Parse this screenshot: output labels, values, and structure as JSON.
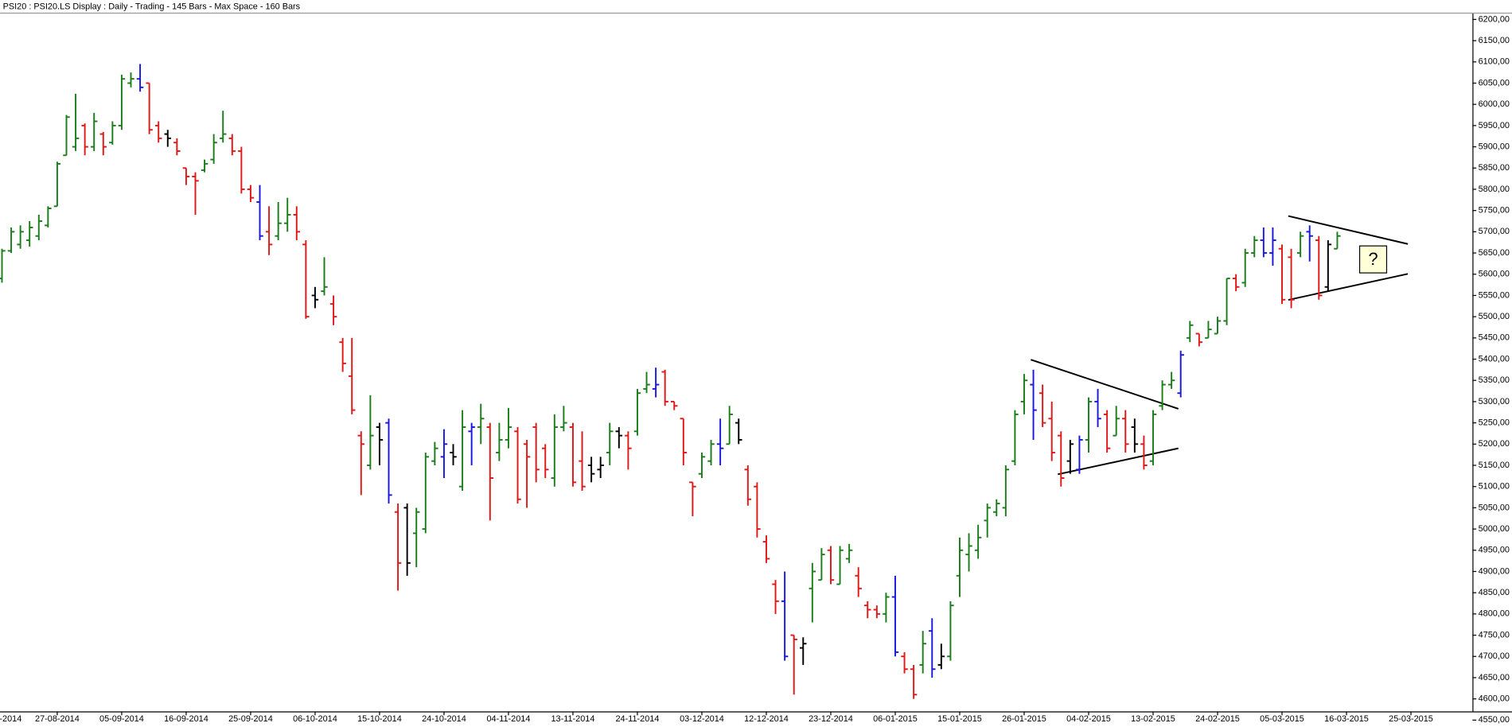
{
  "chart_data": {
    "type": "ohlc",
    "title": "PSI20 : PSI20.LS Display :  Daily  - Trading - 145 Bars  -  Max Space - 160 Bars",
    "annotation": "?",
    "categories": [
      "-2014",
      null,
      null,
      null,
      null,
      null,
      null,
      "27-08-2014",
      null,
      null,
      null,
      null,
      null,
      null,
      "05-09-2014",
      null,
      null,
      null,
      null,
      null,
      null,
      "16-09-2014",
      null,
      null,
      null,
      null,
      null,
      null,
      "25-09-2014",
      null,
      null,
      null,
      null,
      null,
      null,
      "06-10-2014",
      null,
      null,
      null,
      null,
      null,
      null,
      "15-10-2014",
      null,
      null,
      null,
      null,
      null,
      null,
      "24-10-2014",
      null,
      null,
      null,
      null,
      null,
      null,
      "04-11-2014",
      null,
      null,
      null,
      null,
      null,
      null,
      "13-11-2014",
      null,
      null,
      null,
      null,
      null,
      null,
      "24-11-2014",
      null,
      null,
      null,
      null,
      null,
      null,
      "03-12-2014",
      null,
      null,
      null,
      null,
      null,
      null,
      "12-12-2014",
      null,
      null,
      null,
      null,
      null,
      null,
      "23-12-2014",
      null,
      null,
      null,
      null,
      null,
      null,
      "06-01-2015",
      null,
      null,
      null,
      null,
      null,
      null,
      "15-01-2015",
      null,
      null,
      null,
      null,
      null,
      null,
      "26-01-2015",
      null,
      null,
      null,
      null,
      null,
      null,
      "04-02-2015",
      null,
      null,
      null,
      null,
      null,
      null,
      "13-02-2015",
      null,
      null,
      null,
      null,
      null,
      null,
      "24-02-2015",
      null,
      null,
      null,
      null,
      null,
      null,
      "05-03-2015",
      null,
      null,
      null,
      null,
      null,
      null,
      "16-03-2015",
      null,
      null,
      null,
      null,
      null,
      null,
      "25-03-2015",
      null,
      null,
      null,
      null,
      null,
      null
    ],
    "open": [
      null,
      5590,
      5655,
      5670,
      5680,
      5690,
      5715,
      5760,
      5880,
      5900,
      5950,
      5900,
      5930,
      5910,
      5950,
      6050,
      6060,
      6050,
      5950,
      5930,
      5910,
      5850,
      5830,
      5845,
      5870,
      5920,
      5920,
      5890,
      5800,
      5770,
      5700,
      5690,
      5720,
      5740,
      5670,
      5550,
      5560,
      5530,
      5440,
      5360,
      5220,
      5150,
      5240,
      5250,
      5040,
      5050,
      4990,
      5000,
      5160,
      5170,
      5180,
      5100,
      5230,
      5240,
      5240,
      5180,
      5210,
      5230,
      5200,
      5240,
      5190,
      5120,
      5240,
      5240,
      5160,
      5150,
      5140,
      5180,
      5230,
      5220,
      5230,
      5330,
      5330,
      5370,
      5300,
      5260,
      5110,
      5130,
      5160,
      5200,
      5200,
      5250,
      5140,
      5100,
      4970,
      4870,
      4830,
      4750,
      4720,
      4860,
      4880,
      4950,
      4870,
      4930,
      4890,
      4820,
      4810,
      4800,
      4840,
      4700,
      4670,
      4680,
      4760,
      4680,
      4700,
      4890,
      4940,
      4950,
      5020,
      5040,
      5050,
      5160,
      5300,
      5340,
      5320,
      5260,
      5220,
      5160,
      5140,
      5210,
      5300,
      5270,
      5220,
      5260,
      5240,
      5200,
      5160,
      5290,
      5340,
      5320,
      5450,
      5460,
      5450,
      5460,
      5490,
      5590,
      5580,
      5650,
      5680,
      5650,
      5660,
      5640,
      5650,
      5700,
      5680,
      5570,
      5660,
      null,
      null,
      null,
      null,
      null,
      null,
      null,
      null,
      null,
      null,
      null,
      null,
      null,
      null
    ],
    "high": [
      null,
      5660,
      5710,
      5715,
      5725,
      5740,
      5760,
      5865,
      5975,
      6025,
      5955,
      5980,
      5935,
      5960,
      6070,
      6075,
      6095,
      6050,
      5960,
      5940,
      5920,
      5850,
      5840,
      5870,
      5930,
      5985,
      5930,
      5900,
      5810,
      5810,
      5760,
      5770,
      5780,
      5760,
      5680,
      5570,
      5640,
      5550,
      5450,
      5450,
      5230,
      5315,
      5250,
      5260,
      5060,
      5060,
      5050,
      5180,
      5205,
      5235,
      5200,
      5280,
      5250,
      5295,
      5250,
      5250,
      5285,
      5240,
      5210,
      5250,
      5200,
      5270,
      5290,
      5250,
      5230,
      5170,
      5170,
      5250,
      5240,
      5230,
      5330,
      5370,
      5380,
      5375,
      5300,
      5260,
      5110,
      5180,
      5210,
      5260,
      5290,
      5260,
      5150,
      5110,
      4985,
      4880,
      4900,
      4750,
      4745,
      4920,
      4955,
      4960,
      4960,
      4965,
      4910,
      4830,
      4820,
      4850,
      4890,
      4710,
      4680,
      4760,
      4790,
      4730,
      4830,
      4980,
      4990,
      5010,
      5060,
      5070,
      5150,
      5280,
      5365,
      5375,
      5340,
      5300,
      5230,
      5210,
      5220,
      5310,
      5330,
      5280,
      5290,
      5280,
      5260,
      5220,
      5280,
      5350,
      5370,
      5420,
      5490,
      5460,
      5490,
      5500,
      5590,
      5600,
      5660,
      5690,
      5710,
      5710,
      5670,
      5660,
      5700,
      5715,
      5690,
      5680,
      5700,
      null,
      null,
      null,
      null,
      null,
      null,
      null,
      null,
      null,
      null,
      null,
      null,
      null,
      null
    ],
    "low": [
      null,
      5580,
      5650,
      5660,
      5665,
      5680,
      5710,
      5760,
      5880,
      5890,
      5880,
      5890,
      5880,
      5905,
      5940,
      6040,
      6030,
      5930,
      5910,
      5900,
      5880,
      5810,
      5740,
      5840,
      5860,
      5910,
      5880,
      5790,
      5770,
      5680,
      5645,
      5680,
      5700,
      5680,
      5495,
      5520,
      5550,
      5480,
      5370,
      5270,
      5080,
      5140,
      5150,
      5060,
      4855,
      4890,
      4910,
      4990,
      5150,
      5120,
      5150,
      5090,
      5150,
      5200,
      5020,
      5160,
      5190,
      5060,
      5050,
      5110,
      5120,
      5100,
      5230,
      5100,
      5090,
      5110,
      5120,
      5150,
      5190,
      5140,
      5220,
      5320,
      5310,
      5290,
      5280,
      5150,
      5030,
      5120,
      5150,
      5150,
      5200,
      5200,
      5055,
      4980,
      4920,
      4800,
      4690,
      4610,
      4680,
      4780,
      4880,
      4870,
      4870,
      4920,
      4840,
      4790,
      4790,
      4780,
      4700,
      4660,
      4600,
      4660,
      4650,
      4670,
      4690,
      4840,
      4900,
      4930,
      4980,
      5030,
      5030,
      5150,
      5270,
      5210,
      5240,
      5160,
      5100,
      5130,
      5130,
      5180,
      5240,
      5180,
      5220,
      5180,
      5180,
      5140,
      5150,
      5280,
      5330,
      5310,
      5440,
      5430,
      5450,
      5460,
      5480,
      5560,
      5570,
      5640,
      5640,
      5620,
      5530,
      5520,
      5640,
      5630,
      5540,
      5560,
      5660,
      null,
      null,
      null,
      null,
      null,
      null,
      null,
      null,
      null,
      null,
      null,
      null,
      null,
      null
    ],
    "close": [
      null,
      5655,
      5700,
      5700,
      5710,
      5725,
      5755,
      5860,
      5970,
      5920,
      5900,
      5960,
      5900,
      5950,
      6060,
      6060,
      6040,
      5940,
      5920,
      5920,
      5890,
      5830,
      5820,
      5860,
      5910,
      5930,
      5890,
      5800,
      5780,
      5690,
      5670,
      5720,
      5740,
      5700,
      5500,
      5540,
      5570,
      5500,
      5390,
      5280,
      5200,
      5220,
      5210,
      5080,
      4920,
      4920,
      5040,
      5170,
      5190,
      5200,
      5170,
      5240,
      5240,
      5260,
      5120,
      5210,
      5240,
      5070,
      5170,
      5140,
      5140,
      5240,
      5250,
      5110,
      5100,
      5130,
      5150,
      5230,
      5220,
      5190,
      5320,
      5340,
      5340,
      5300,
      5290,
      5180,
      5100,
      5170,
      5200,
      5190,
      5270,
      5210,
      5070,
      5000,
      4930,
      4830,
      4700,
      4740,
      4730,
      4900,
      4940,
      4880,
      4950,
      4950,
      4860,
      4810,
      4800,
      4840,
      4710,
      4670,
      4610,
      4730,
      4670,
      4700,
      4820,
      4950,
      4960,
      4980,
      5050,
      5060,
      5140,
      5270,
      5350,
      5280,
      5250,
      5180,
      5120,
      5200,
      5210,
      5300,
      5260,
      5190,
      5260,
      5200,
      5200,
      5150,
      5270,
      5340,
      5350,
      5410,
      5480,
      5440,
      5470,
      5490,
      5590,
      5570,
      5650,
      5680,
      5650,
      5680,
      5540,
      5540,
      5690,
      5690,
      5550,
      5670,
      5690,
      null,
      null,
      null,
      null,
      null,
      null,
      null,
      null,
      null,
      null,
      null,
      null,
      null,
      null
    ],
    "colors": [
      null,
      "#1b7d1b",
      "#1b7d1b",
      "#1b7d1b",
      "#1b7d1b",
      "#1b7d1b",
      "#1b7d1b",
      "#1b7d1b",
      "#1b7d1b",
      "#1b7d1b",
      "#e01818",
      "#1b7d1b",
      "#e01818",
      "#1b7d1b",
      "#1b7d1b",
      "#1b7d1b",
      "#1818e0",
      "#e01818",
      "#e01818",
      "#000000",
      "#e01818",
      "#e01818",
      "#e01818",
      "#1b7d1b",
      "#1b7d1b",
      "#1b7d1b",
      "#e01818",
      "#e01818",
      "#e01818",
      "#1818e0",
      "#e01818",
      "#1b7d1b",
      "#1b7d1b",
      "#e01818",
      "#e01818",
      "#000000",
      "#1b7d1b",
      "#e01818",
      "#e01818",
      "#e01818",
      "#e01818",
      "#1b7d1b",
      "#000000",
      "#1818e0",
      "#e01818",
      "#000000",
      "#1b7d1b",
      "#1b7d1b",
      "#1b7d1b",
      "#1818e0",
      "#000000",
      "#1b7d1b",
      "#1818e0",
      "#1b7d1b",
      "#e01818",
      "#1b7d1b",
      "#1b7d1b",
      "#e01818",
      "#e01818",
      "#e01818",
      "#e01818",
      "#1b7d1b",
      "#1b7d1b",
      "#e01818",
      "#e01818",
      "#000000",
      "#000000",
      "#1b7d1b",
      "#000000",
      "#e01818",
      "#1b7d1b",
      "#1b7d1b",
      "#1818e0",
      "#e01818",
      "#e01818",
      "#e01818",
      "#e01818",
      "#1b7d1b",
      "#1b7d1b",
      "#1818e0",
      "#1b7d1b",
      "#000000",
      "#e01818",
      "#e01818",
      "#e01818",
      "#e01818",
      "#1818e0",
      "#e01818",
      "#000000",
      "#1b7d1b",
      "#1b7d1b",
      "#e01818",
      "#1b7d1b",
      "#1b7d1b",
      "#e01818",
      "#e01818",
      "#e01818",
      "#1b7d1b",
      "#1818e0",
      "#e01818",
      "#e01818",
      "#1b7d1b",
      "#1818e0",
      "#000000",
      "#1b7d1b",
      "#1b7d1b",
      "#1b7d1b",
      "#1b7d1b",
      "#1b7d1b",
      "#1b7d1b",
      "#1b7d1b",
      "#1b7d1b",
      "#1b7d1b",
      "#1818e0",
      "#e01818",
      "#e01818",
      "#e01818",
      "#000000",
      "#1818e0",
      "#1b7d1b",
      "#1818e0",
      "#e01818",
      "#1b7d1b",
      "#e01818",
      "#000000",
      "#e01818",
      "#1b7d1b",
      "#1b7d1b",
      "#1b7d1b",
      "#1818e0",
      "#1b7d1b",
      "#e01818",
      "#1b7d1b",
      "#1b7d1b",
      "#1b7d1b",
      "#e01818",
      "#1b7d1b",
      "#1b7d1b",
      "#1818e0",
      "#1818e0",
      "#e01818",
      "#e01818",
      "#1b7d1b",
      "#1818e0",
      "#e01818",
      "#000000",
      "#1b7d1b",
      null,
      null,
      null,
      null,
      null,
      null,
      null,
      null,
      null,
      null,
      null,
      null,
      null,
      null
    ],
    "ylim": [
      4550,
      6200
    ],
    "yticks": [
      {
        "value": 6200,
        "label": "6200,00"
      },
      {
        "value": 6150,
        "label": "6150,00"
      },
      {
        "value": 6100,
        "label": "6100,00"
      },
      {
        "value": 6050,
        "label": "6050,00"
      },
      {
        "value": 6000,
        "label": "6000,00"
      },
      {
        "value": 5950,
        "label": "5950,00"
      },
      {
        "value": 5900,
        "label": "5900,00"
      },
      {
        "value": 5850,
        "label": "5850,00"
      },
      {
        "value": 5800,
        "label": "5800,00"
      },
      {
        "value": 5750,
        "label": "5750,00"
      },
      {
        "value": 5700,
        "label": "5700,00"
      },
      {
        "value": 5650,
        "label": "5650,00"
      },
      {
        "value": 5600,
        "label": "5600,00"
      },
      {
        "value": 5550,
        "label": "5550,00"
      },
      {
        "value": 5500,
        "label": "5500,00"
      },
      {
        "value": 5450,
        "label": "5450,00"
      },
      {
        "value": 5400,
        "label": "5400,00"
      },
      {
        "value": 5350,
        "label": "5350,00"
      },
      {
        "value": 5300,
        "label": "5300,00"
      },
      {
        "value": 5250,
        "label": "5250,00"
      },
      {
        "value": 5200,
        "label": "5200,00"
      },
      {
        "value": 5150,
        "label": "5150,00"
      },
      {
        "value": 5100,
        "label": "5100,00"
      },
      {
        "value": 5050,
        "label": "5050,00"
      },
      {
        "value": 5000,
        "label": "5000,00"
      },
      {
        "value": 4950,
        "label": "4950,00"
      },
      {
        "value": 4900,
        "label": "4900,00"
      },
      {
        "value": 4850,
        "label": "4850,00"
      },
      {
        "value": 4800,
        "label": "4800,00"
      },
      {
        "value": 4750,
        "label": "4750,00"
      },
      {
        "value": 4700,
        "label": "4700,00"
      },
      {
        "value": 4650,
        "label": "4650,00"
      },
      {
        "value": 4600,
        "label": "4600,00"
      },
      {
        "value": 4550,
        "label": "4550,00"
      }
    ]
  }
}
